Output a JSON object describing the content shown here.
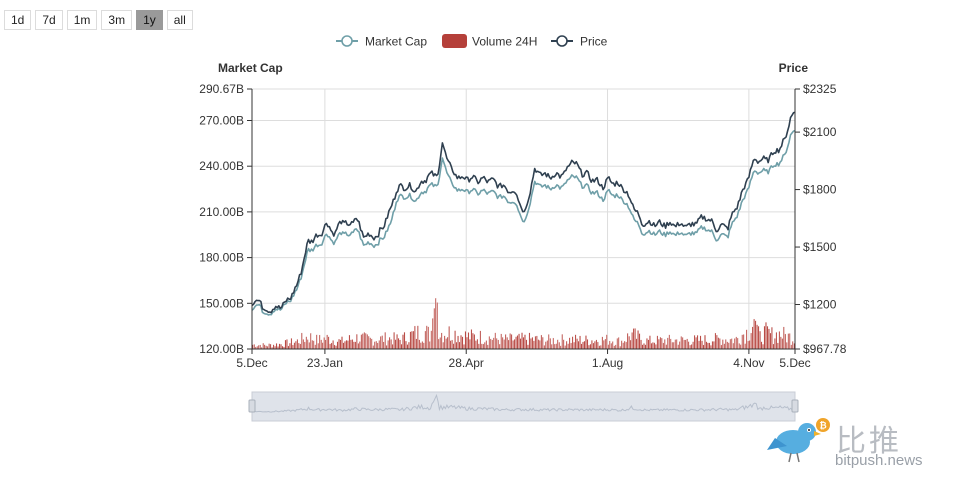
{
  "range_buttons": [
    {
      "label": "1d",
      "active": false
    },
    {
      "label": "7d",
      "active": false
    },
    {
      "label": "1m",
      "active": false
    },
    {
      "label": "3m",
      "active": false
    },
    {
      "label": "1y",
      "active": true
    },
    {
      "label": "all",
      "active": false
    }
  ],
  "colors": {
    "market_cap": "#6f9fa8",
    "volume": "#b5403a",
    "price": "#2f4050",
    "grid": "#dddddd",
    "axis": "#333333",
    "zoom_fill": "#dfe3ea",
    "zoom_line": "#b7bfcc"
  },
  "watermark": {
    "chinese": "比推",
    "url": "bitpush.news"
  },
  "chart_data": {
    "type": "line",
    "legend": [
      "Market Cap",
      "Volume 24H",
      "Price"
    ],
    "left_axis": {
      "title": "Market Cap",
      "min": 120.0,
      "max": 290.67,
      "ticks": [
        120.0,
        150.0,
        180.0,
        210.0,
        240.0,
        270.0,
        290.67
      ],
      "tick_labels": [
        "120.00B",
        "150.00B",
        "180.00B",
        "210.00B",
        "240.00B",
        "270.00B",
        "290.67B"
      ]
    },
    "right_axis": {
      "title": "Price",
      "min": 967.78,
      "max": 2325,
      "ticks": [
        967.78,
        1200,
        1500,
        1800,
        2100,
        2325
      ],
      "tick_labels": [
        "$967.78",
        "$1200",
        "$1500",
        "$1800",
        "$2100",
        "$2325"
      ]
    },
    "x_days_total": 365,
    "x_ticks": [
      {
        "day": 0,
        "label": "5.Dec"
      },
      {
        "day": 49,
        "label": "23.Jan"
      },
      {
        "day": 144,
        "label": "28.Apr"
      },
      {
        "day": 239,
        "label": "1.Aug"
      },
      {
        "day": 334,
        "label": "4.Nov"
      },
      {
        "day": 365,
        "label": "5.Dec"
      }
    ],
    "price_series": {
      "name": "Price",
      "points": [
        [
          0,
          1200
        ],
        [
          5,
          1230
        ],
        [
          8,
          1170
        ],
        [
          15,
          1180
        ],
        [
          22,
          1200
        ],
        [
          30,
          1290
        ],
        [
          38,
          1530
        ],
        [
          45,
          1560
        ],
        [
          50,
          1620
        ],
        [
          56,
          1570
        ],
        [
          60,
          1640
        ],
        [
          65,
          1610
        ],
        [
          70,
          1650
        ],
        [
          75,
          1560
        ],
        [
          85,
          1560
        ],
        [
          93,
          1690
        ],
        [
          97,
          1800
        ],
        [
          103,
          1820
        ],
        [
          110,
          1800
        ],
        [
          118,
          1870
        ],
        [
          125,
          1880
        ],
        [
          128,
          2040
        ],
        [
          134,
          1900
        ],
        [
          140,
          1860
        ],
        [
          146,
          1860
        ],
        [
          152,
          1850
        ],
        [
          160,
          1850
        ],
        [
          170,
          1810
        ],
        [
          178,
          1780
        ],
        [
          183,
          1670
        ],
        [
          190,
          1900
        ],
        [
          198,
          1870
        ],
        [
          210,
          1880
        ],
        [
          215,
          1950
        ],
        [
          222,
          1890
        ],
        [
          228,
          1860
        ],
        [
          236,
          1820
        ],
        [
          240,
          1850
        ],
        [
          250,
          1810
        ],
        [
          258,
          1690
        ],
        [
          262,
          1630
        ],
        [
          272,
          1620
        ],
        [
          282,
          1620
        ],
        [
          295,
          1610
        ],
        [
          305,
          1660
        ],
        [
          312,
          1600
        ],
        [
          320,
          1610
        ],
        [
          330,
          1790
        ],
        [
          338,
          1960
        ],
        [
          345,
          1950
        ],
        [
          352,
          2000
        ],
        [
          358,
          2050
        ],
        [
          362,
          2180
        ],
        [
          365,
          2200
        ]
      ]
    },
    "market_cap_series": {
      "name": "Market Cap",
      "points": [
        [
          0,
          146
        ],
        [
          5,
          150
        ],
        [
          8,
          143
        ],
        [
          15,
          145
        ],
        [
          22,
          148
        ],
        [
          30,
          158
        ],
        [
          38,
          185
        ],
        [
          45,
          188
        ],
        [
          50,
          195
        ],
        [
          56,
          190
        ],
        [
          60,
          197
        ],
        [
          65,
          194
        ],
        [
          70,
          199
        ],
        [
          75,
          189
        ],
        [
          85,
          189
        ],
        [
          93,
          201
        ],
        [
          97,
          218
        ],
        [
          103,
          221
        ],
        [
          110,
          218
        ],
        [
          118,
          226
        ],
        [
          125,
          228
        ],
        [
          128,
          245
        ],
        [
          134,
          228
        ],
        [
          140,
          224
        ],
        [
          146,
          224
        ],
        [
          152,
          223
        ],
        [
          160,
          223
        ],
        [
          170,
          219
        ],
        [
          178,
          215
        ],
        [
          183,
          202
        ],
        [
          190,
          229
        ],
        [
          198,
          226
        ],
        [
          210,
          227
        ],
        [
          215,
          234
        ],
        [
          222,
          228
        ],
        [
          228,
          224
        ],
        [
          236,
          219
        ],
        [
          240,
          223
        ],
        [
          250,
          218
        ],
        [
          258,
          204
        ],
        [
          262,
          197
        ],
        [
          272,
          196
        ],
        [
          282,
          196
        ],
        [
          295,
          195
        ],
        [
          305,
          200
        ],
        [
          312,
          193
        ],
        [
          320,
          195
        ],
        [
          330,
          217
        ],
        [
          338,
          237
        ],
        [
          345,
          236
        ],
        [
          352,
          241
        ],
        [
          358,
          246
        ],
        [
          362,
          261
        ],
        [
          365,
          263
        ]
      ]
    },
    "volume_series": {
      "name": "Volume 24H",
      "unit": "B",
      "points": [
        [
          0,
          7
        ],
        [
          10,
          6
        ],
        [
          20,
          8
        ],
        [
          30,
          12
        ],
        [
          38,
          20
        ],
        [
          44,
          14
        ],
        [
          50,
          17
        ],
        [
          60,
          12
        ],
        [
          70,
          18
        ],
        [
          80,
          15
        ],
        [
          92,
          17
        ],
        [
          100,
          15
        ],
        [
          110,
          25
        ],
        [
          116,
          28
        ],
        [
          120,
          22
        ],
        [
          124,
          80
        ],
        [
          126,
          26
        ],
        [
          135,
          26
        ],
        [
          145,
          20
        ],
        [
          155,
          19
        ],
        [
          170,
          15
        ],
        [
          185,
          16
        ],
        [
          200,
          14
        ],
        [
          215,
          15
        ],
        [
          225,
          14
        ],
        [
          240,
          15
        ],
        [
          248,
          12
        ],
        [
          255,
          23
        ],
        [
          265,
          13
        ],
        [
          280,
          14
        ],
        [
          300,
          14
        ],
        [
          315,
          16
        ],
        [
          325,
          15
        ],
        [
          330,
          24
        ],
        [
          334,
          28
        ],
        [
          338,
          45
        ],
        [
          341,
          18
        ],
        [
          345,
          26
        ],
        [
          350,
          22
        ],
        [
          355,
          24
        ],
        [
          360,
          20
        ],
        [
          365,
          18
        ]
      ]
    }
  }
}
